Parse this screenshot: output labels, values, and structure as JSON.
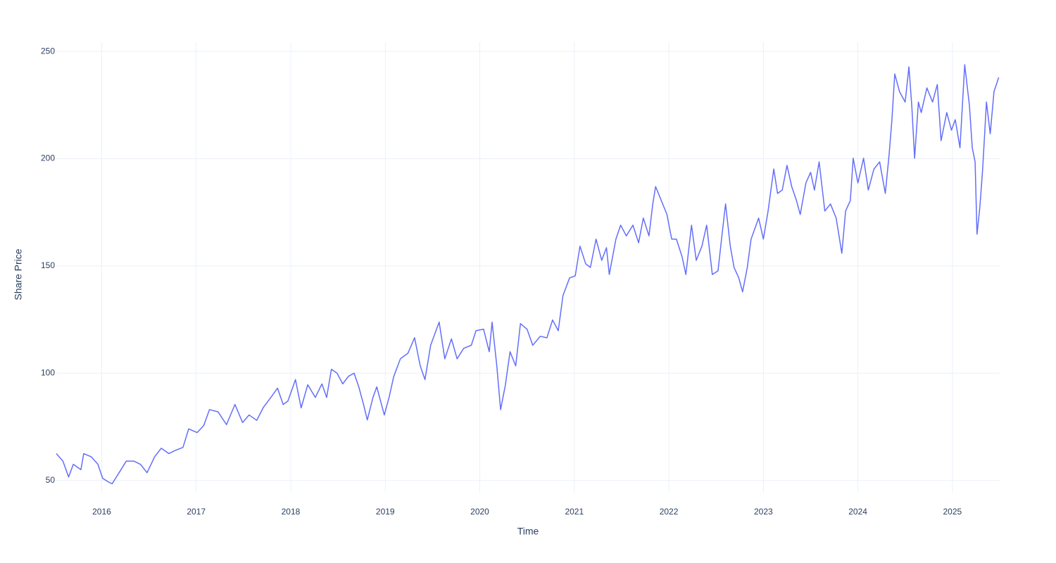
{
  "chart_data": {
    "type": "line",
    "xlabel": "Time",
    "ylabel": "Share Price",
    "color": "#636efa",
    "grid": true,
    "xlim": [
      2015.52,
      2025.5
    ],
    "xticks": [
      2016,
      2017,
      2018,
      2019,
      2020,
      2021,
      2022,
      2023,
      2024,
      2025
    ],
    "ylim": [
      44.3,
      254.3
    ],
    "yticks": [
      50,
      100,
      150,
      200,
      250
    ],
    "x": [
      2015.52,
      2015.59,
      2015.65,
      2015.7,
      2015.78,
      2015.81,
      2015.89,
      2015.96,
      2016.01,
      2016.07,
      2016.11,
      2016.19,
      2016.26,
      2016.34,
      2016.41,
      2016.48,
      2016.56,
      2016.63,
      2016.71,
      2016.78,
      2016.86,
      2016.92,
      2017.01,
      2017.08,
      2017.14,
      2017.23,
      2017.32,
      2017.41,
      2017.49,
      2017.56,
      2017.64,
      2017.71,
      2017.79,
      2017.86,
      2017.92,
      2017.97,
      2018.05,
      2018.11,
      2018.18,
      2018.26,
      2018.33,
      2018.38,
      2018.43,
      2018.49,
      2018.55,
      2018.61,
      2018.67,
      2018.72,
      2018.77,
      2018.81,
      2018.87,
      2018.91,
      2018.96,
      2018.99,
      2019.04,
      2019.09,
      2019.16,
      2019.24,
      2019.31,
      2019.37,
      2019.42,
      2019.48,
      2019.57,
      2019.63,
      2019.7,
      2019.76,
      2019.83,
      2019.91,
      2019.96,
      2020.04,
      2020.1,
      2020.13,
      2020.18,
      2020.22,
      2020.27,
      2020.32,
      2020.38,
      2020.43,
      2020.5,
      2020.56,
      2020.64,
      2020.71,
      2020.77,
      2020.83,
      2020.88,
      2020.95,
      2021.01,
      2021.06,
      2021.12,
      2021.17,
      2021.23,
      2021.29,
      2021.34,
      2021.37,
      2021.44,
      2021.49,
      2021.55,
      2021.62,
      2021.68,
      2021.73,
      2021.79,
      2021.83,
      2021.86,
      2021.92,
      2021.98,
      2022.03,
      2022.08,
      2022.14,
      2022.18,
      2022.24,
      2022.29,
      2022.35,
      2022.4,
      2022.46,
      2022.52,
      2022.57,
      2022.6,
      2022.65,
      2022.69,
      2022.74,
      2022.78,
      2022.83,
      2022.87,
      2022.95,
      2023.0,
      2023.05,
      2023.11,
      2023.15,
      2023.2,
      2023.25,
      2023.3,
      2023.35,
      2023.39,
      2023.45,
      2023.5,
      2023.54,
      2023.59,
      2023.65,
      2023.71,
      2023.77,
      2023.83,
      2023.87,
      2023.92,
      2023.95,
      2024.0,
      2024.06,
      2024.11,
      2024.17,
      2024.23,
      2024.29,
      2024.33,
      2024.36,
      2024.39,
      2024.44,
      2024.5,
      2024.54,
      2024.57,
      2024.6,
      2024.64,
      2024.67,
      2024.73,
      2024.79,
      2024.84,
      2024.88,
      2024.94,
      2024.99,
      2025.03,
      2025.08,
      2025.13,
      2025.18,
      2025.21,
      2025.24,
      2025.26,
      2025.29,
      2025.32,
      2025.36,
      2025.4,
      2025.44,
      2025.49
    ],
    "values": [
      62.5,
      59,
      51.6,
      57.5,
      55,
      62.5,
      61,
      57.5,
      51,
      49.3,
      48.4,
      54,
      59,
      59,
      57.5,
      53.6,
      61,
      65,
      62.5,
      64,
      65.4,
      74,
      72.3,
      75.6,
      83,
      82,
      76,
      85.4,
      77,
      80.5,
      78,
      84,
      88.7,
      93,
      85.4,
      87,
      97,
      83.8,
      94.6,
      88.7,
      95,
      88.7,
      101.8,
      100,
      95,
      98.5,
      100,
      93.6,
      85.4,
      78.2,
      88.7,
      93.6,
      85.4,
      80.5,
      88.7,
      98.5,
      106.7,
      109.3,
      116.5,
      103.4,
      97,
      113,
      123.8,
      106.7,
      116,
      106.7,
      111.6,
      113,
      119.8,
      120.5,
      110,
      123.8,
      103.4,
      83,
      94.3,
      110,
      103.4,
      123.1,
      120.5,
      113,
      117.2,
      116.5,
      124.8,
      119.8,
      136.2,
      144.4,
      145.4,
      159.2,
      151,
      149.3,
      162.5,
      152.6,
      158.5,
      146,
      162.5,
      169,
      164,
      169,
      160.8,
      172.3,
      164,
      178.9,
      187,
      180.5,
      174,
      162.5,
      162.5,
      154.3,
      146,
      169,
      152.6,
      159.2,
      169,
      146,
      147.7,
      167.4,
      178.9,
      159.2,
      149.3,
      144.4,
      137.9,
      149.3,
      162.5,
      172.3,
      162.5,
      175.6,
      195.2,
      183.8,
      185.4,
      196.9,
      187,
      180.5,
      174,
      188.7,
      193.6,
      185.4,
      198.5,
      175.6,
      178.9,
      172.3,
      155.9,
      175.6,
      180.5,
      200.2,
      188.7,
      200.2,
      185.4,
      195.2,
      198.5,
      183.8,
      201.8,
      218.2,
      239.5,
      231.3,
      226.4,
      242.8,
      224.8,
      200.2,
      226.4,
      221.5,
      233,
      226.4,
      234.6,
      208.4,
      221.5,
      213.3,
      218.2,
      205.1,
      243.8,
      224.8,
      205.1,
      198.5,
      164.8,
      177.2,
      195.2,
      226.4,
      211.6,
      231.3,
      237.9
    ]
  }
}
